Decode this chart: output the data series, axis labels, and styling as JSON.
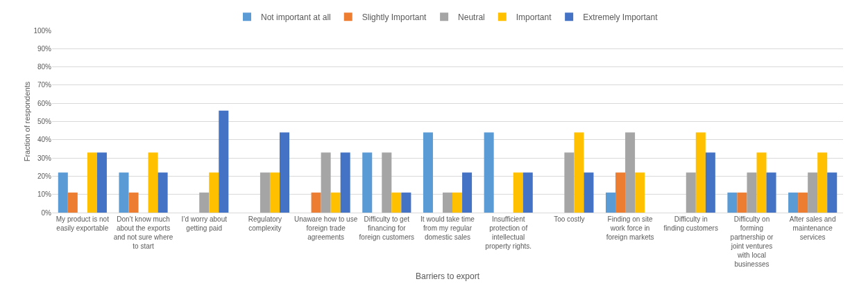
{
  "chart_data": {
    "type": "bar",
    "xlabel": "Barriers to export",
    "ylabel": "Fraction of respondents",
    "categories": [
      "My product is not easily exportable",
      "Don’t know much about the exports and not sure where to start",
      "I’d worry about getting paid",
      "Regulatory complexity",
      "Unaware how to use foreign trade agreements",
      "Difficulty to get financing for foreign customers",
      "It would take time from my regular domestic sales",
      "Insufficient protection of intellectual property rights.",
      "Too costly",
      "Finding on site work force in foreign markets",
      "Difficulty in finding customers",
      "Difficulty on forming partnership or joint ventures with local businesses",
      "After sales and maintenance services"
    ],
    "series": [
      {
        "name": "Not important at all",
        "color": "#5b9bd5",
        "values": [
          22,
          22,
          0,
          0,
          0,
          33,
          44,
          44,
          0,
          11,
          0,
          11,
          11
        ]
      },
      {
        "name": "Slightly Important",
        "color": "#ed7d31",
        "values": [
          11,
          11,
          0,
          0,
          11,
          0,
          0,
          0,
          0,
          22,
          0,
          11,
          11
        ]
      },
      {
        "name": "Neutral",
        "color": "#a5a5a5",
        "values": [
          0,
          0,
          11,
          22,
          33,
          33,
          11,
          0,
          33,
          44,
          22,
          22,
          22
        ]
      },
      {
        "name": "Important",
        "color": "#ffc000",
        "values": [
          33,
          33,
          22,
          22,
          11,
          11,
          11,
          22,
          44,
          22,
          44,
          33,
          33
        ]
      },
      {
        "name": "Extremely Important",
        "color": "#4472c4",
        "values": [
          33,
          22,
          56,
          44,
          33,
          11,
          22,
          22,
          22,
          0,
          33,
          22,
          22
        ]
      }
    ],
    "ylim": [
      0,
      100
    ],
    "yticks": [
      {
        "value": 0,
        "label": "0%"
      },
      {
        "value": 10,
        "label": "10%"
      },
      {
        "value": 20,
        "label": "20%"
      },
      {
        "value": 30,
        "label": "30%"
      },
      {
        "value": 40,
        "label": "40%"
      },
      {
        "value": 50,
        "label": "50%"
      },
      {
        "value": 60,
        "label": "60%"
      },
      {
        "value": 70,
        "label": "70%"
      },
      {
        "value": 80,
        "label": "80%"
      },
      {
        "value": 90,
        "label": "90%"
      },
      {
        "value": 100,
        "label": "100%"
      }
    ],
    "grid": "y",
    "legend": "top"
  }
}
